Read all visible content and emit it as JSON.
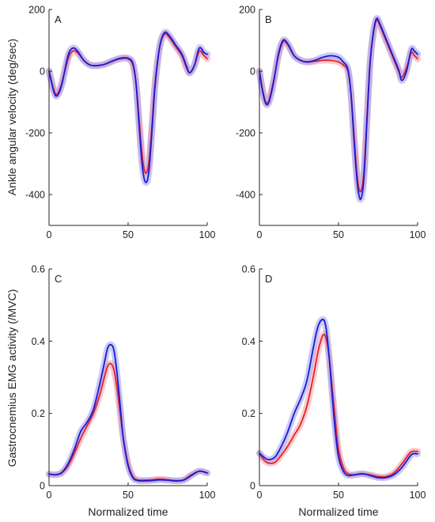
{
  "colors": {
    "condition_red": "#e8202a",
    "condition_blue": "#1a1ad6",
    "band_red": "#f3a0a4",
    "band_blue": "#9c9cf0",
    "axis": "#262626"
  },
  "shared_labels": {
    "ylabel_top": "Ankle angular velocity (deg/sec)",
    "ylabel_bottom": "Gastrocnemius EMG activity (/MVC)",
    "xlabel": "Normalized time"
  },
  "chart_data": [
    {
      "type": "line",
      "panel": "A",
      "xlim": [
        0,
        100
      ],
      "ylim": [
        -500,
        200
      ],
      "xticks": [
        "0",
        "50",
        "100"
      ],
      "yticks": [
        "-400",
        "-200",
        "0",
        "200"
      ],
      "series": [
        {
          "color": "red",
          "x": [
            0,
            3,
            5,
            8,
            12,
            15,
            18,
            22,
            26,
            30,
            35,
            40,
            45,
            50,
            53,
            55,
            57,
            59,
            61,
            63,
            65,
            67,
            70,
            73,
            76,
            80,
            84,
            87,
            89,
            92,
            95,
            98,
            100
          ],
          "y": [
            0,
            -60,
            -75,
            -40,
            40,
            65,
            60,
            35,
            20,
            18,
            22,
            32,
            40,
            40,
            20,
            -40,
            -160,
            -280,
            -330,
            -300,
            -180,
            -40,
            80,
            120,
            110,
            80,
            50,
            10,
            -5,
            20,
            65,
            50,
            40
          ]
        },
        {
          "color": "blue",
          "x": [
            0,
            3,
            5,
            8,
            12,
            15,
            18,
            22,
            26,
            30,
            35,
            40,
            45,
            50,
            53,
            55,
            57,
            59,
            61,
            63,
            65,
            67,
            70,
            73,
            76,
            80,
            84,
            87,
            89,
            92,
            95,
            98,
            100
          ],
          "y": [
            0,
            -65,
            -80,
            -45,
            50,
            75,
            65,
            35,
            20,
            18,
            22,
            33,
            42,
            42,
            25,
            -40,
            -180,
            -310,
            -360,
            -330,
            -200,
            -50,
            80,
            125,
            115,
            85,
            55,
            15,
            -5,
            20,
            75,
            60,
            55
          ]
        }
      ]
    },
    {
      "type": "line",
      "panel": "B",
      "xlim": [
        0,
        100
      ],
      "ylim": [
        -500,
        200
      ],
      "xticks": [
        "0",
        "50",
        "100"
      ],
      "yticks": [
        "-400",
        "-200",
        "0",
        "200"
      ],
      "series": [
        {
          "color": "red",
          "x": [
            0,
            2,
            4,
            6,
            9,
            12,
            15,
            18,
            22,
            26,
            30,
            35,
            40,
            45,
            50,
            53,
            56,
            58,
            60,
            62,
            64,
            66,
            68,
            70,
            72,
            74,
            76,
            80,
            84,
            88,
            90,
            93,
            96,
            98,
            100
          ],
          "y": [
            0,
            -60,
            -100,
            -95,
            -30,
            50,
            95,
            85,
            50,
            35,
            30,
            32,
            35,
            35,
            30,
            20,
            0,
            -80,
            -220,
            -350,
            -390,
            -330,
            -150,
            30,
            120,
            165,
            150,
            100,
            50,
            0,
            -20,
            10,
            60,
            50,
            40
          ]
        },
        {
          "color": "blue",
          "x": [
            0,
            2,
            4,
            6,
            9,
            12,
            15,
            18,
            22,
            26,
            30,
            35,
            40,
            45,
            50,
            53,
            56,
            58,
            60,
            62,
            64,
            66,
            68,
            70,
            72,
            74,
            76,
            80,
            84,
            88,
            90,
            93,
            96,
            98,
            100
          ],
          "y": [
            0,
            -65,
            -105,
            -100,
            -35,
            55,
            100,
            88,
            50,
            35,
            30,
            35,
            45,
            50,
            45,
            30,
            5,
            -80,
            -240,
            -370,
            -415,
            -350,
            -160,
            30,
            125,
            170,
            155,
            105,
            55,
            5,
            -30,
            0,
            70,
            65,
            55
          ]
        }
      ]
    },
    {
      "type": "line",
      "panel": "C",
      "xlim": [
        0,
        100
      ],
      "ylim": [
        0,
        0.6
      ],
      "xticks": [
        "0",
        "50",
        "100"
      ],
      "yticks": [
        "0",
        "0.2",
        "0.4",
        "0.6"
      ],
      "series": [
        {
          "color": "red",
          "x": [
            0,
            4,
            8,
            12,
            16,
            20,
            24,
            28,
            32,
            35,
            37,
            39,
            41,
            43,
            45,
            47,
            50,
            53,
            56,
            60,
            65,
            70,
            75,
            80,
            85,
            90,
            95,
            100
          ],
          "y": [
            0.032,
            0.03,
            0.035,
            0.055,
            0.09,
            0.13,
            0.165,
            0.2,
            0.25,
            0.3,
            0.33,
            0.338,
            0.32,
            0.27,
            0.2,
            0.13,
            0.06,
            0.025,
            0.016,
            0.015,
            0.016,
            0.018,
            0.016,
            0.014,
            0.016,
            0.03,
            0.04,
            0.035
          ]
        },
        {
          "color": "blue",
          "x": [
            0,
            4,
            8,
            12,
            16,
            20,
            24,
            28,
            32,
            35,
            37,
            39,
            41,
            43,
            45,
            47,
            50,
            53,
            56,
            60,
            65,
            70,
            75,
            80,
            85,
            90,
            95,
            100
          ],
          "y": [
            0.032,
            0.03,
            0.036,
            0.06,
            0.1,
            0.15,
            0.175,
            0.21,
            0.28,
            0.34,
            0.38,
            0.39,
            0.375,
            0.31,
            0.22,
            0.13,
            0.055,
            0.022,
            0.014,
            0.013,
            0.014,
            0.016,
            0.015,
            0.013,
            0.015,
            0.028,
            0.04,
            0.035
          ]
        }
      ]
    },
    {
      "type": "line",
      "panel": "D",
      "xlim": [
        0,
        100
      ],
      "ylim": [
        0,
        0.6
      ],
      "xticks": [
        "0",
        "50",
        "100"
      ],
      "yticks": [
        "0",
        "0.2",
        "0.4",
        "0.6"
      ],
      "series": [
        {
          "color": "red",
          "x": [
            0,
            3,
            6,
            10,
            14,
            18,
            22,
            26,
            30,
            34,
            37,
            40,
            42,
            44,
            46,
            48,
            50,
            53,
            56,
            60,
            65,
            70,
            75,
            80,
            85,
            90,
            95,
            97,
            100
          ],
          "y": [
            0.09,
            0.07,
            0.062,
            0.065,
            0.085,
            0.11,
            0.14,
            0.17,
            0.22,
            0.3,
            0.37,
            0.415,
            0.41,
            0.36,
            0.27,
            0.18,
            0.1,
            0.05,
            0.033,
            0.03,
            0.032,
            0.03,
            0.025,
            0.025,
            0.035,
            0.06,
            0.09,
            0.095,
            0.095
          ]
        },
        {
          "color": "blue",
          "x": [
            0,
            3,
            6,
            10,
            14,
            18,
            22,
            26,
            30,
            34,
            37,
            40,
            42,
            44,
            46,
            48,
            50,
            53,
            56,
            60,
            65,
            70,
            75,
            80,
            85,
            90,
            95,
            97,
            100
          ],
          "y": [
            0.09,
            0.078,
            0.072,
            0.08,
            0.11,
            0.15,
            0.2,
            0.24,
            0.29,
            0.38,
            0.44,
            0.46,
            0.44,
            0.36,
            0.25,
            0.15,
            0.08,
            0.04,
            0.028,
            0.03,
            0.033,
            0.028,
            0.022,
            0.022,
            0.03,
            0.05,
            0.08,
            0.088,
            0.088
          ]
        }
      ]
    }
  ]
}
